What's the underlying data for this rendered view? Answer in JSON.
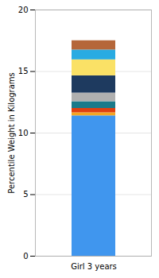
{
  "chart_data": {
    "type": "bar",
    "stacked": true,
    "categories": [
      "Girl 3 years"
    ],
    "series": [
      {
        "color": "#4096EE",
        "values": [
          11.4
        ]
      },
      {
        "color": "#F5A623",
        "values": [
          0.25
        ]
      },
      {
        "color": "#E04010",
        "values": [
          0.35
        ]
      },
      {
        "color": "#1A7A8A",
        "values": [
          0.55
        ]
      },
      {
        "color": "#B0B0B0",
        "values": [
          0.7
        ]
      },
      {
        "color": "#1E3A5F",
        "values": [
          1.4
        ]
      },
      {
        "color": "#FAE166",
        "values": [
          1.3
        ]
      },
      {
        "color": "#29ABE2",
        "values": [
          0.8
        ]
      },
      {
        "color": "#B5673A",
        "values": [
          0.75
        ]
      }
    ],
    "ylabel": "Percentile Weight in Kilograms",
    "ylim": [
      0,
      20
    ],
    "yticks": [
      0,
      5,
      10,
      15,
      20
    ],
    "grid": true
  }
}
